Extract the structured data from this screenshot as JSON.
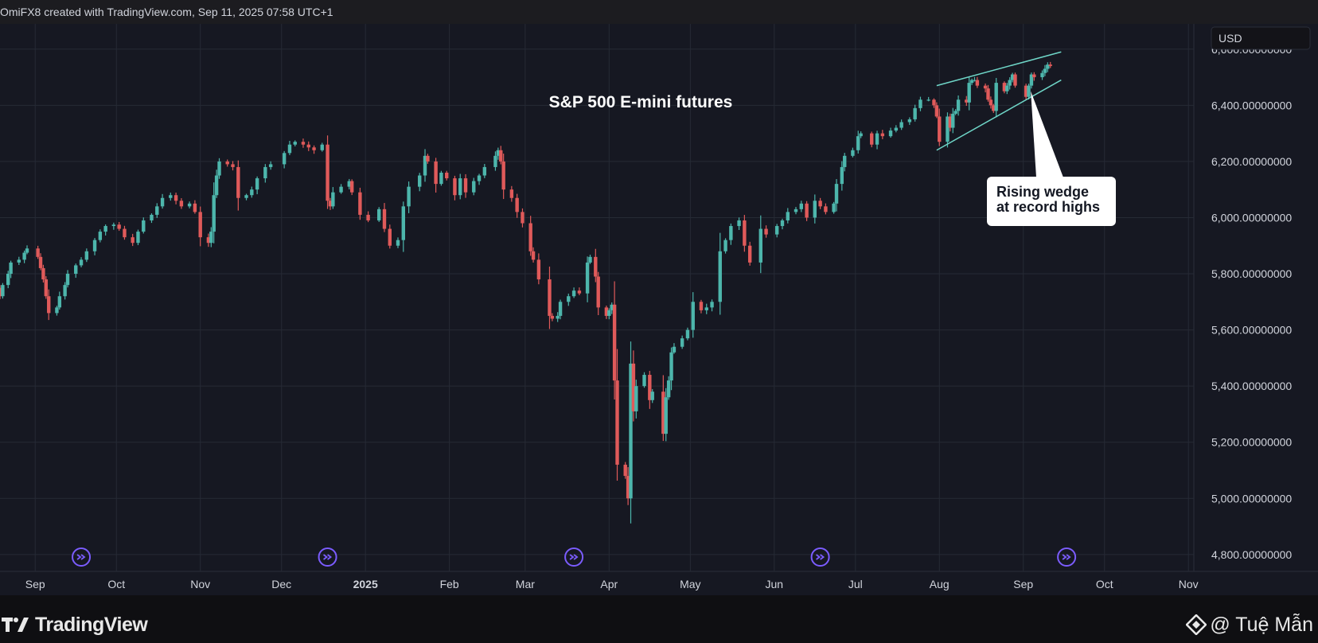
{
  "header": {
    "caption": "OmiFX8 created with TradingView.com, Sep 11, 2025 07:58 UTC+1"
  },
  "footer": {
    "brand": "TradingView",
    "credit": "@ Tuệ Mẫn"
  },
  "colors": {
    "background": "#161822",
    "grid": "#262a35",
    "up": "#4db6ac",
    "down": "#e05a5a",
    "wedge": "#6fd6c8",
    "event_icon": "#7b5cff",
    "annotation_bg": "#ffffff",
    "annotation_text": "#131722"
  },
  "chart_data": {
    "type": "candlestick",
    "title": "S&P 500 E-mini futures",
    "currency": "USD",
    "y_axis": {
      "range": [
        4740,
        6690
      ],
      "ticks": [
        4800,
        5000,
        5200,
        5400,
        5600,
        5800,
        6000,
        6200,
        6400,
        6600
      ],
      "tick_labels": [
        "4,800.00000000",
        "5,000.00000000",
        "5,200.00000000",
        "5,400.00000000",
        "5,600.00000000",
        "5,800.00000000",
        "6,000.00000000",
        "6,200.00000000",
        "6,400.00000000",
        "6,600.00000000"
      ]
    },
    "x_axis": {
      "range": [
        "2024-08-19",
        "2025-11-03"
      ],
      "ticks": [
        {
          "date": "2024-09-01",
          "label": "Sep",
          "bold": false
        },
        {
          "date": "2024-10-01",
          "label": "Oct",
          "bold": false
        },
        {
          "date": "2024-11-01",
          "label": "Nov",
          "bold": false
        },
        {
          "date": "2024-12-01",
          "label": "Dec",
          "bold": false
        },
        {
          "date": "2025-01-01",
          "label": "2025",
          "bold": true
        },
        {
          "date": "2025-02-01",
          "label": "Feb",
          "bold": false
        },
        {
          "date": "2025-03-01",
          "label": "Mar",
          "bold": false
        },
        {
          "date": "2025-04-01",
          "label": "Apr",
          "bold": false
        },
        {
          "date": "2025-05-01",
          "label": "May",
          "bold": false
        },
        {
          "date": "2025-06-01",
          "label": "Jun",
          "bold": false
        },
        {
          "date": "2025-07-01",
          "label": "Jul",
          "bold": false
        },
        {
          "date": "2025-08-01",
          "label": "Aug",
          "bold": false
        },
        {
          "date": "2025-09-01",
          "label": "Sep",
          "bold": false
        },
        {
          "date": "2025-10-01",
          "label": "Oct",
          "bold": false
        },
        {
          "date": "2025-11-01",
          "label": "Nov",
          "bold": false
        }
      ]
    },
    "grid": true,
    "closes": [
      [
        "2024-08-19",
        5720
      ],
      [
        "2024-08-20",
        5760
      ],
      [
        "2024-08-22",
        5800
      ],
      [
        "2024-08-23",
        5840
      ],
      [
        "2024-08-26",
        5850
      ],
      [
        "2024-08-28",
        5875
      ],
      [
        "2024-08-29",
        5890
      ],
      [
        "2024-09-02",
        5860
      ],
      [
        "2024-09-03",
        5820
      ],
      [
        "2024-09-04",
        5780
      ],
      [
        "2024-09-05",
        5720
      ],
      [
        "2024-09-06",
        5660
      ],
      [
        "2024-09-09",
        5680
      ],
      [
        "2024-09-10",
        5720
      ],
      [
        "2024-09-12",
        5760
      ],
      [
        "2024-09-13",
        5800
      ],
      [
        "2024-09-16",
        5830
      ],
      [
        "2024-09-18",
        5850
      ],
      [
        "2024-09-20",
        5880
      ],
      [
        "2024-09-23",
        5920
      ],
      [
        "2024-09-25",
        5950
      ],
      [
        "2024-09-27",
        5970
      ],
      [
        "2024-09-30",
        5975
      ],
      [
        "2024-10-02",
        5960
      ],
      [
        "2024-10-04",
        5930
      ],
      [
        "2024-10-07",
        5910
      ],
      [
        "2024-10-09",
        5950
      ],
      [
        "2024-10-11",
        5990
      ],
      [
        "2024-10-14",
        6010
      ],
      [
        "2024-10-16",
        6040
      ],
      [
        "2024-10-18",
        6070
      ],
      [
        "2024-10-21",
        6080
      ],
      [
        "2024-10-23",
        6060
      ],
      [
        "2024-10-25",
        6040
      ],
      [
        "2024-10-28",
        6050
      ],
      [
        "2024-10-30",
        6020
      ],
      [
        "2024-11-01",
        5930
      ],
      [
        "2024-11-04",
        5910
      ],
      [
        "2024-11-05",
        5950
      ],
      [
        "2024-11-06",
        6080
      ],
      [
        "2024-11-07",
        6150
      ],
      [
        "2024-11-08",
        6200
      ],
      [
        "2024-11-11",
        6190
      ],
      [
        "2024-11-13",
        6180
      ],
      [
        "2024-11-15",
        6070
      ],
      [
        "2024-11-18",
        6080
      ],
      [
        "2024-11-20",
        6100
      ],
      [
        "2024-11-22",
        6140
      ],
      [
        "2024-11-25",
        6180
      ],
      [
        "2024-11-27",
        6190
      ],
      [
        "2024-12-02",
        6230
      ],
      [
        "2024-12-04",
        6260
      ],
      [
        "2024-12-06",
        6270
      ],
      [
        "2024-12-09",
        6260
      ],
      [
        "2024-12-11",
        6250
      ],
      [
        "2024-12-13",
        6240
      ],
      [
        "2024-12-16",
        6260
      ],
      [
        "2024-12-18",
        6060
      ],
      [
        "2024-12-19",
        6040
      ],
      [
        "2024-12-20",
        6090
      ],
      [
        "2024-12-23",
        6110
      ],
      [
        "2024-12-26",
        6130
      ],
      [
        "2024-12-27",
        6090
      ],
      [
        "2024-12-30",
        6010
      ],
      [
        "2025-01-02",
        5990
      ],
      [
        "2025-01-06",
        6030
      ],
      [
        "2025-01-08",
        5960
      ],
      [
        "2025-01-10",
        5900
      ],
      [
        "2025-01-13",
        5920
      ],
      [
        "2025-01-15",
        6040
      ],
      [
        "2025-01-17",
        6110
      ],
      [
        "2025-01-21",
        6150
      ],
      [
        "2025-01-23",
        6220
      ],
      [
        "2025-01-24",
        6200
      ],
      [
        "2025-01-27",
        6120
      ],
      [
        "2025-01-29",
        6160
      ],
      [
        "2025-01-31",
        6140
      ],
      [
        "2025-02-03",
        6080
      ],
      [
        "2025-02-05",
        6140
      ],
      [
        "2025-02-07",
        6090
      ],
      [
        "2025-02-10",
        6130
      ],
      [
        "2025-02-12",
        6150
      ],
      [
        "2025-02-14",
        6180
      ],
      [
        "2025-02-18",
        6220
      ],
      [
        "2025-02-19",
        6240
      ],
      [
        "2025-02-20",
        6200
      ],
      [
        "2025-02-21",
        6100
      ],
      [
        "2025-02-24",
        6070
      ],
      [
        "2025-02-26",
        6020
      ],
      [
        "2025-02-28",
        5980
      ],
      [
        "2025-03-03",
        5880
      ],
      [
        "2025-03-04",
        5850
      ],
      [
        "2025-03-06",
        5780
      ],
      [
        "2025-03-10",
        5650
      ],
      [
        "2025-03-11",
        5640
      ],
      [
        "2025-03-13",
        5650
      ],
      [
        "2025-03-14",
        5700
      ],
      [
        "2025-03-17",
        5720
      ],
      [
        "2025-03-19",
        5740
      ],
      [
        "2025-03-21",
        5730
      ],
      [
        "2025-03-24",
        5840
      ],
      [
        "2025-03-25",
        5860
      ],
      [
        "2025-03-27",
        5790
      ],
      [
        "2025-03-28",
        5680
      ],
      [
        "2025-03-31",
        5650
      ],
      [
        "2025-04-01",
        5670
      ],
      [
        "2025-04-02",
        5690
      ],
      [
        "2025-04-03",
        5420
      ],
      [
        "2025-04-04",
        5120
      ],
      [
        "2025-04-07",
        5080
      ],
      [
        "2025-04-08",
        5000
      ],
      [
        "2025-04-09",
        5480
      ],
      [
        "2025-04-10",
        5310
      ],
      [
        "2025-04-11",
        5400
      ],
      [
        "2025-04-14",
        5440
      ],
      [
        "2025-04-16",
        5350
      ],
      [
        "2025-04-17",
        5380
      ],
      [
        "2025-04-21",
        5230
      ],
      [
        "2025-04-22",
        5360
      ],
      [
        "2025-04-23",
        5420
      ],
      [
        "2025-04-24",
        5520
      ],
      [
        "2025-04-25",
        5540
      ],
      [
        "2025-04-28",
        5570
      ],
      [
        "2025-04-30",
        5600
      ],
      [
        "2025-05-02",
        5700
      ],
      [
        "2025-05-05",
        5670
      ],
      [
        "2025-05-07",
        5680
      ],
      [
        "2025-05-09",
        5700
      ],
      [
        "2025-05-12",
        5880
      ],
      [
        "2025-05-14",
        5920
      ],
      [
        "2025-05-16",
        5970
      ],
      [
        "2025-05-19",
        5990
      ],
      [
        "2025-05-21",
        5900
      ],
      [
        "2025-05-23",
        5840
      ],
      [
        "2025-05-27",
        5960
      ],
      [
        "2025-05-29",
        5940
      ],
      [
        "2025-06-02",
        5970
      ],
      [
        "2025-06-04",
        5990
      ],
      [
        "2025-06-06",
        6020
      ],
      [
        "2025-06-09",
        6030
      ],
      [
        "2025-06-11",
        6050
      ],
      [
        "2025-06-13",
        6000
      ],
      [
        "2025-06-16",
        6060
      ],
      [
        "2025-06-18",
        6040
      ],
      [
        "2025-06-20",
        6020
      ],
      [
        "2025-06-23",
        6050
      ],
      [
        "2025-06-24",
        6120
      ],
      [
        "2025-06-26",
        6180
      ],
      [
        "2025-06-27",
        6220
      ],
      [
        "2025-06-30",
        6240
      ],
      [
        "2025-07-02",
        6290
      ],
      [
        "2025-07-03",
        6300
      ],
      [
        "2025-07-07",
        6260
      ],
      [
        "2025-07-09",
        6300
      ],
      [
        "2025-07-11",
        6290
      ],
      [
        "2025-07-14",
        6310
      ],
      [
        "2025-07-16",
        6320
      ],
      [
        "2025-07-18",
        6340
      ],
      [
        "2025-07-21",
        6350
      ],
      [
        "2025-07-23",
        6390
      ],
      [
        "2025-07-25",
        6420
      ],
      [
        "2025-07-28",
        6420
      ],
      [
        "2025-07-30",
        6400
      ],
      [
        "2025-07-31",
        6360
      ],
      [
        "2025-08-01",
        6270
      ],
      [
        "2025-08-04",
        6360
      ],
      [
        "2025-08-05",
        6320
      ],
      [
        "2025-08-06",
        6370
      ],
      [
        "2025-08-07",
        6380
      ],
      [
        "2025-08-08",
        6420
      ],
      [
        "2025-08-11",
        6410
      ],
      [
        "2025-08-12",
        6480
      ],
      [
        "2025-08-13",
        6490
      ],
      [
        "2025-08-14",
        6490
      ],
      [
        "2025-08-15",
        6470
      ],
      [
        "2025-08-18",
        6460
      ],
      [
        "2025-08-19",
        6420
      ],
      [
        "2025-08-20",
        6400
      ],
      [
        "2025-08-21",
        6380
      ],
      [
        "2025-08-22",
        6480
      ],
      [
        "2025-08-25",
        6450
      ],
      [
        "2025-08-26",
        6470
      ],
      [
        "2025-08-27",
        6490
      ],
      [
        "2025-08-28",
        6510
      ],
      [
        "2025-08-29",
        6470
      ],
      [
        "2025-09-02",
        6430
      ],
      [
        "2025-09-03",
        6470
      ],
      [
        "2025-09-04",
        6510
      ],
      [
        "2025-09-05",
        6500
      ],
      [
        "2025-09-08",
        6515
      ],
      [
        "2025-09-09",
        6530
      ],
      [
        "2025-09-10",
        6545
      ],
      [
        "2025-09-11",
        6540
      ]
    ],
    "annotations": [
      {
        "type": "rising_wedge",
        "start": "2025-07-31",
        "end": "2025-09-15",
        "upper": [
          6470,
          6590
        ],
        "lower": [
          6240,
          6490
        ]
      },
      {
        "type": "callout",
        "text_lines": [
          "Rising wedge",
          "at record highs"
        ],
        "points_to": "2025-09-02"
      }
    ],
    "event_markers": [
      "2024-09-18",
      "2024-12-18",
      "2025-03-19",
      "2025-06-18",
      "2025-09-17"
    ]
  }
}
